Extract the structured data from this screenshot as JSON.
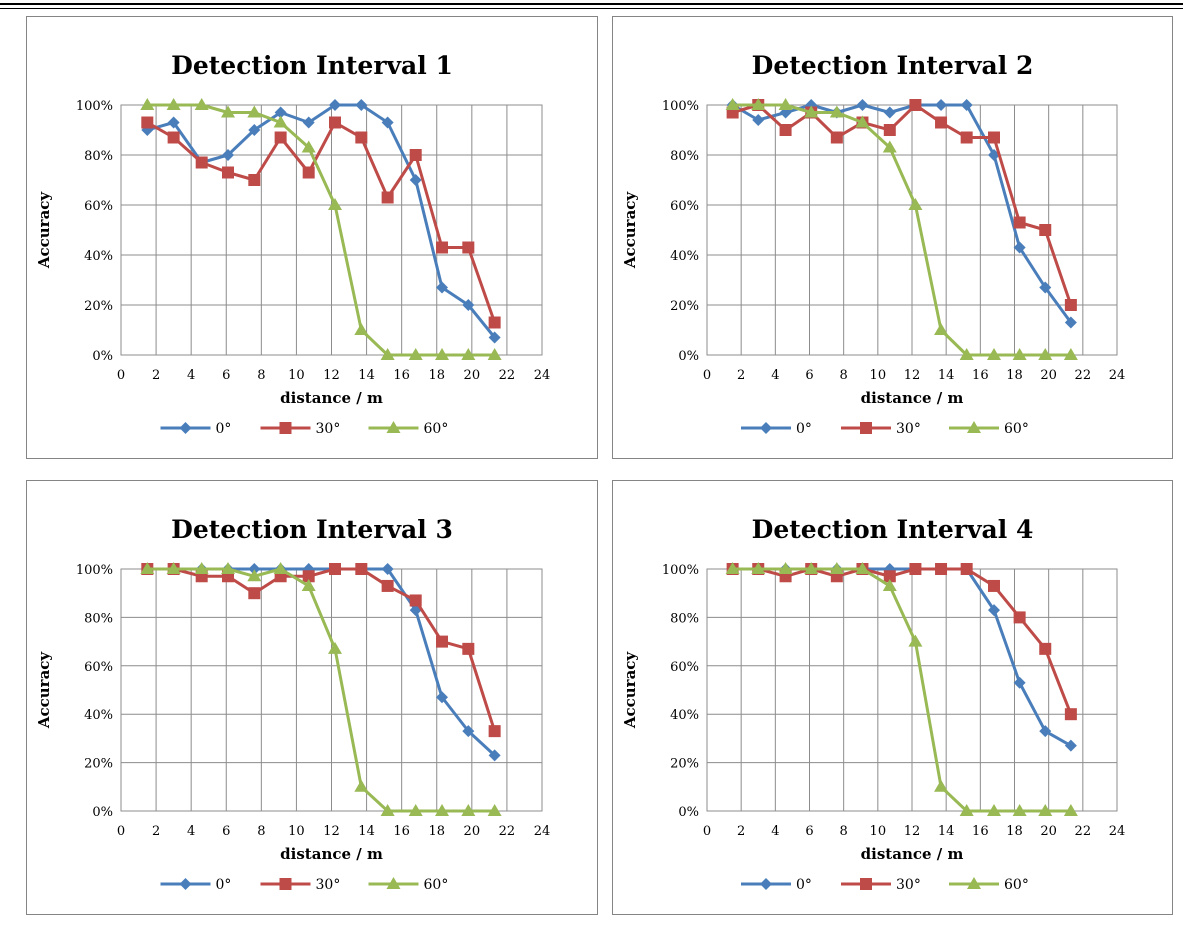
{
  "chart_data": [
    {
      "type": "line",
      "title": "Detection Interval 1",
      "xlabel": "distance / m",
      "ylabel": "Accuracy",
      "xlim": [
        0,
        24
      ],
      "ylim": [
        0,
        100
      ],
      "xticks": [
        "0",
        "2",
        "4",
        "6",
        "8",
        "10",
        "12",
        "14",
        "16",
        "18",
        "20",
        "22",
        "24"
      ],
      "yticks": [
        "0%",
        "20%",
        "40%",
        "60%",
        "80%",
        "100%"
      ],
      "grid": true,
      "legend": "bottom",
      "series": [
        {
          "name": "0°",
          "color": "#4A7EBB",
          "marker": "diamond",
          "x": [
            1.5,
            3,
            4.6,
            6.1,
            7.6,
            9.1,
            10.7,
            12.2,
            13.7,
            15.2,
            16.8,
            18.3,
            19.8,
            21.3
          ],
          "y": [
            90,
            93,
            77,
            80,
            90,
            97,
            93,
            100,
            100,
            93,
            70,
            27,
            20,
            7
          ]
        },
        {
          "name": "30°",
          "color": "#BE4B48",
          "marker": "square",
          "x": [
            1.5,
            3,
            4.6,
            6.1,
            7.6,
            9.1,
            10.7,
            12.2,
            13.7,
            15.2,
            16.8,
            18.3,
            19.8,
            21.3
          ],
          "y": [
            93,
            87,
            77,
            73,
            70,
            87,
            73,
            93,
            87,
            63,
            80,
            43,
            43,
            13
          ]
        },
        {
          "name": "60°",
          "color": "#98B954",
          "marker": "triangle",
          "x": [
            1.5,
            3,
            4.6,
            6.1,
            7.6,
            9.1,
            10.7,
            12.2,
            13.7,
            15.2,
            16.8,
            18.3,
            19.8,
            21.3
          ],
          "y": [
            100,
            100,
            100,
            97,
            97,
            93,
            83,
            60,
            10,
            0,
            0,
            0,
            0,
            0
          ]
        }
      ]
    },
    {
      "type": "line",
      "title": "Detection Interval 2",
      "xlabel": "distance / m",
      "ylabel": "Accuracy",
      "xlim": [
        0,
        24
      ],
      "ylim": [
        0,
        100
      ],
      "xticks": [
        "0",
        "2",
        "4",
        "6",
        "8",
        "10",
        "12",
        "14",
        "16",
        "18",
        "20",
        "22",
        "24"
      ],
      "yticks": [
        "0%",
        "20%",
        "40%",
        "60%",
        "80%",
        "100%"
      ],
      "grid": true,
      "legend": "bottom",
      "series": [
        {
          "name": "0°",
          "color": "#4A7EBB",
          "marker": "diamond",
          "x": [
            1.5,
            3,
            4.6,
            6.1,
            7.6,
            9.1,
            10.7,
            12.2,
            13.7,
            15.2,
            16.8,
            18.3,
            19.8,
            21.3
          ],
          "y": [
            100,
            94,
            97,
            100,
            97,
            100,
            97,
            100,
            100,
            100,
            80,
            43,
            27,
            13
          ]
        },
        {
          "name": "30°",
          "color": "#BE4B48",
          "marker": "square",
          "x": [
            1.5,
            3,
            4.6,
            6.1,
            7.6,
            9.1,
            10.7,
            12.2,
            13.7,
            15.2,
            16.8,
            18.3,
            19.8,
            21.3
          ],
          "y": [
            97,
            100,
            90,
            97,
            87,
            93,
            90,
            100,
            93,
            87,
            87,
            53,
            50,
            20
          ]
        },
        {
          "name": "60°",
          "color": "#98B954",
          "marker": "triangle",
          "x": [
            1.5,
            3,
            4.6,
            6.1,
            7.6,
            9.1,
            10.7,
            12.2,
            13.7,
            15.2,
            16.8,
            18.3,
            19.8,
            21.3
          ],
          "y": [
            100,
            100,
            100,
            97,
            97,
            93,
            83,
            60,
            10,
            0,
            0,
            0,
            0,
            0
          ]
        }
      ]
    },
    {
      "type": "line",
      "title": "Detection Interval 3",
      "xlabel": "distance / m",
      "ylabel": "Accuracy",
      "xlim": [
        0,
        24
      ],
      "ylim": [
        0,
        100
      ],
      "xticks": [
        "0",
        "2",
        "4",
        "6",
        "8",
        "10",
        "12",
        "14",
        "16",
        "18",
        "20",
        "22",
        "24"
      ],
      "yticks": [
        "0%",
        "20%",
        "40%",
        "60%",
        "80%",
        "100%"
      ],
      "grid": true,
      "legend": "bottom",
      "series": [
        {
          "name": "0°",
          "color": "#4A7EBB",
          "marker": "diamond",
          "x": [
            1.5,
            3,
            4.6,
            6.1,
            7.6,
            9.1,
            10.7,
            12.2,
            13.7,
            15.2,
            16.8,
            18.3,
            19.8,
            21.3
          ],
          "y": [
            100,
            100,
            100,
            100,
            100,
            100,
            100,
            100,
            100,
            100,
            83,
            47,
            33,
            23
          ]
        },
        {
          "name": "30°",
          "color": "#BE4B48",
          "marker": "square",
          "x": [
            1.5,
            3,
            4.6,
            6.1,
            7.6,
            9.1,
            10.7,
            12.2,
            13.7,
            15.2,
            16.8,
            18.3,
            19.8,
            21.3
          ],
          "y": [
            100,
            100,
            97,
            97,
            90,
            97,
            97,
            100,
            100,
            93,
            87,
            70,
            67,
            33
          ]
        },
        {
          "name": "60°",
          "color": "#98B954",
          "marker": "triangle",
          "x": [
            1.5,
            3,
            4.6,
            6.1,
            7.6,
            9.1,
            10.7,
            12.2,
            13.7,
            15.2,
            16.8,
            18.3,
            19.8,
            21.3
          ],
          "y": [
            100,
            100,
            100,
            100,
            97,
            100,
            93,
            67,
            10,
            0,
            0,
            0,
            0,
            0
          ]
        }
      ]
    },
    {
      "type": "line",
      "title": "Detection Interval 4",
      "xlabel": "distance / m",
      "ylabel": "Accuracy",
      "xlim": [
        0,
        24
      ],
      "ylim": [
        0,
        100
      ],
      "xticks": [
        "0",
        "2",
        "4",
        "6",
        "8",
        "10",
        "12",
        "14",
        "16",
        "18",
        "20",
        "22",
        "24"
      ],
      "yticks": [
        "0%",
        "20%",
        "40%",
        "60%",
        "80%",
        "100%"
      ],
      "grid": true,
      "legend": "bottom",
      "series": [
        {
          "name": "0°",
          "color": "#4A7EBB",
          "marker": "diamond",
          "x": [
            1.5,
            3,
            4.6,
            6.1,
            7.6,
            9.1,
            10.7,
            12.2,
            13.7,
            15.2,
            16.8,
            18.3,
            19.8,
            21.3
          ],
          "y": [
            100,
            100,
            100,
            100,
            100,
            100,
            100,
            100,
            100,
            100,
            83,
            53,
            33,
            27
          ]
        },
        {
          "name": "30°",
          "color": "#BE4B48",
          "marker": "square",
          "x": [
            1.5,
            3,
            4.6,
            6.1,
            7.6,
            9.1,
            10.7,
            12.2,
            13.7,
            15.2,
            16.8,
            18.3,
            19.8,
            21.3
          ],
          "y": [
            100,
            100,
            97,
            100,
            97,
            100,
            97,
            100,
            100,
            100,
            93,
            80,
            67,
            40
          ]
        },
        {
          "name": "60°",
          "color": "#98B954",
          "marker": "triangle",
          "x": [
            1.5,
            3,
            4.6,
            6.1,
            7.6,
            9.1,
            10.7,
            12.2,
            13.7,
            15.2,
            16.8,
            18.3,
            19.8,
            21.3
          ],
          "y": [
            100,
            100,
            100,
            100,
            100,
            100,
            93,
            70,
            10,
            0,
            0,
            0,
            0,
            0
          ]
        }
      ]
    }
  ]
}
